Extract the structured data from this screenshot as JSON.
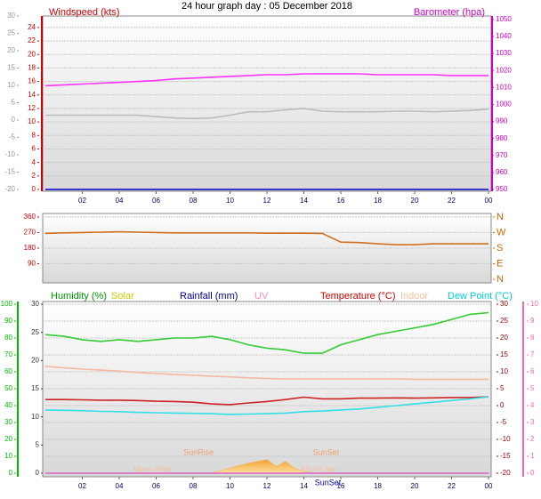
{
  "chart_data": [
    {
      "type": "line",
      "title": "24 hour graph day : 05 December 2018",
      "xlim": [
        0,
        24
      ],
      "xticks": [
        {
          "value": 2,
          "label": "02"
        },
        {
          "value": 4,
          "label": "04"
        },
        {
          "value": 6,
          "label": "06"
        },
        {
          "value": 8,
          "label": "08"
        },
        10,
        12,
        14,
        16,
        18,
        20,
        22,
        {
          "value": 24,
          "label": "00"
        }
      ],
      "ylim": [
        0,
        25.7
      ],
      "yticks": [
        0,
        2,
        4,
        6,
        8,
        10,
        12,
        14,
        16,
        18,
        20,
        22,
        24
      ],
      "ycolor": "#cc0000",
      "y3lim": [
        -20,
        30
      ],
      "y3ticks": [
        -20,
        -15,
        -10,
        -5,
        0,
        5,
        10,
        15,
        20,
        25,
        30
      ],
      "y3color": "#999999",
      "y2lim": [
        950,
        1052
      ],
      "y2ticks": [
        950,
        960,
        970,
        980,
        990,
        1000,
        1010,
        1020,
        1030,
        1040,
        1050
      ],
      "y2color": "#cc00cc",
      "grid": true,
      "x": [
        0,
        1,
        2,
        3,
        4,
        5,
        6,
        7,
        8,
        9,
        10,
        11,
        12,
        13,
        14,
        15,
        16,
        17,
        18,
        19,
        20,
        21,
        22,
        23,
        24
      ],
      "series": [
        {
          "color": "#bbbbbb",
          "values": [
            11,
            11,
            11,
            11,
            11,
            11,
            10.8,
            10.6,
            10.5,
            10.6,
            11,
            11.5,
            11.5,
            11.8,
            12,
            11.6,
            11.5,
            11.5,
            11.5,
            11.6,
            11.6,
            11.5,
            11.6,
            11.7,
            11.9
          ]
        },
        {
          "name": "Windspeed (kts)",
          "color": "#0000cc",
          "legend_color": "#cc0000",
          "values": [
            0,
            0,
            0,
            0,
            0,
            0,
            0,
            0,
            0,
            0,
            0,
            0,
            0,
            0,
            0,
            0,
            0,
            0,
            0,
            0,
            0,
            0,
            0,
            0,
            0
          ]
        },
        {
          "name": "Barometer (hpa)",
          "color": "#ff33ff",
          "legend_color": "#cc00cc",
          "axis": "y2",
          "values": [
            1011,
            1011.5,
            1012,
            1012.5,
            1013,
            1013.5,
            1014,
            1015,
            1015.5,
            1016,
            1016.5,
            1017,
            1017.5,
            1017.5,
            1018,
            1018,
            1018,
            1018,
            1017.5,
            1017.5,
            1017.5,
            1017.5,
            1017,
            1017,
            1017
          ]
        }
      ]
    },
    {
      "type": "line",
      "xlim": [
        0,
        24
      ],
      "ylim": [
        -10,
        380
      ],
      "yticks": [
        90,
        180,
        270,
        360
      ],
      "ycolor": "#cc0000",
      "y2lim": [
        -10,
        380
      ],
      "y2ticks": [
        {
          "value": 360,
          "label": "N"
        },
        {
          "value": 270,
          "label": "W"
        },
        {
          "value": 180,
          "label": "S"
        },
        {
          "value": 90,
          "label": "E"
        },
        {
          "value": 0,
          "label": "N"
        }
      ],
      "y2color": "#cc6600",
      "grid": true,
      "x": [
        0,
        1,
        2,
        3,
        4,
        5,
        6,
        7,
        8,
        9,
        10,
        11,
        12,
        13,
        14,
        15,
        16,
        17,
        18,
        19,
        20,
        21,
        22,
        23,
        24
      ],
      "series": [
        {
          "color": "#d07020",
          "values": [
            265,
            268,
            270,
            272,
            275,
            272,
            270,
            268,
            268,
            268,
            268,
            268,
            266,
            266,
            266,
            265,
            215,
            212,
            205,
            200,
            200,
            205,
            205,
            205,
            205
          ]
        }
      ]
    },
    {
      "type": "line",
      "xlim": [
        0,
        24
      ],
      "xticks": [
        {
          "value": 2,
          "label": "02"
        },
        {
          "value": 4,
          "label": "04"
        },
        {
          "value": 6,
          "label": "06"
        },
        {
          "value": 8,
          "label": "08"
        },
        10,
        12,
        14,
        16,
        18,
        20,
        22,
        {
          "value": 24,
          "label": "00"
        }
      ],
      "ylim": [
        0,
        100
      ],
      "yticks": [
        0,
        10,
        20,
        30,
        40,
        50,
        60,
        70,
        80,
        90,
        100
      ],
      "ycolor": "#00bb00",
      "y3lim": [
        0,
        30
      ],
      "y3ticks": [
        0,
        5,
        10,
        15,
        20,
        25,
        30
      ],
      "y3color": "#333333",
      "y2lim": [
        -20,
        30
      ],
      "y2ticks": [
        -20,
        -15,
        -10,
        -5,
        0,
        5,
        10,
        15,
        20,
        25,
        30
      ],
      "y2color": "#990000",
      "y4lim": [
        0,
        10
      ],
      "y4ticks": [
        0,
        1,
        2,
        3,
        4,
        5,
        6,
        7,
        8,
        9,
        10
      ],
      "y4color": "#ff66aa",
      "grid": true,
      "x": [
        0,
        1,
        2,
        3,
        4,
        5,
        6,
        7,
        8,
        9,
        10,
        11,
        12,
        13,
        14,
        15,
        16,
        17,
        18,
        19,
        20,
        21,
        22,
        23,
        24
      ],
      "series": [
        {
          "name": "Humidity (%)",
          "color": "#33cc33",
          "legend_color": "#009900",
          "values": [
            82,
            81,
            79,
            78,
            79,
            78,
            79,
            80,
            80,
            81,
            79,
            76,
            74,
            73,
            71,
            71,
            76,
            79,
            82,
            84,
            86,
            88,
            91,
            94,
            95
          ]
        },
        {
          "name": "Solar",
          "type": "area",
          "color": "#f5b040",
          "legend_color": "#cccc00",
          "x": [
            9,
            10,
            11,
            12,
            12.5,
            13,
            13.5,
            14,
            14.5
          ],
          "values": [
            0,
            3,
            6,
            8,
            4,
            7,
            3,
            1,
            0
          ]
        },
        {
          "name": "Rainfall (mm)",
          "color": "#000099",
          "legend_color": "#000099",
          "axis": "y3",
          "values": [
            0,
            0,
            0,
            0,
            0,
            0,
            0,
            0,
            0,
            0,
            0,
            0,
            0,
            0,
            0,
            0,
            0,
            0,
            0,
            0,
            0,
            0,
            0,
            0,
            0
          ]
        },
        {
          "name": "UV",
          "color": "#ff88cc",
          "legend_color": "#ff88cc",
          "axis": "y4",
          "values": [
            0,
            0,
            0,
            0,
            0,
            0,
            0,
            0,
            0,
            0,
            0,
            0,
            0,
            0,
            0,
            0,
            0,
            0,
            0,
            0,
            0,
            0,
            0,
            0,
            0
          ]
        },
        {
          "name": "Temperature (°C)",
          "color": "#cc2222",
          "legend_color": "#cc0000",
          "axis": "y2",
          "values": [
            1.8,
            1.8,
            1.7,
            1.6,
            1.6,
            1.5,
            1.3,
            1.2,
            1.0,
            0.5,
            0.3,
            0.8,
            1.2,
            1.8,
            2.5,
            2.0,
            2.0,
            2.2,
            2.2,
            2.3,
            2.2,
            2.3,
            2.4,
            2.4,
            2.6
          ]
        },
        {
          "name": "Indoor",
          "color": "#f5b8a0",
          "legend_color": "#f5c0a0",
          "axis": "y2",
          "values": [
            11.6,
            11.2,
            10.8,
            10.5,
            10.2,
            9.8,
            9.5,
            9.2,
            9.0,
            8.7,
            8.5,
            8.2,
            8.0,
            7.9,
            7.9,
            7.9,
            7.9,
            7.9,
            7.9,
            7.9,
            7.8,
            7.8,
            7.8,
            7.8,
            7.8
          ]
        },
        {
          "name": "Dew Point (°C)",
          "color": "#33e0e8",
          "legend_color": "#00cccc",
          "axis": "y2",
          "values": [
            -1.3,
            -1.4,
            -1.5,
            -1.7,
            -1.8,
            -2.0,
            -2.1,
            -2.2,
            -2.3,
            -2.4,
            -2.6,
            -2.5,
            -2.4,
            -2.2,
            -1.8,
            -1.6,
            -1.3,
            -1.0,
            -0.5,
            0,
            0.5,
            1.0,
            1.5,
            2.0,
            2.6
          ]
        }
      ],
      "annotations": [
        {
          "text": "SunRise",
          "x": 8.3,
          "y": 10,
          "color": "#f0a070"
        },
        {
          "text": "SunSet",
          "x": 15.2,
          "y": 10,
          "color": "#f0a070"
        },
        {
          "text": "Moon Rise",
          "x": 5.8,
          "y": 0,
          "color": "#f5c0a0"
        },
        {
          "text": "Moon Set",
          "x": 14.8,
          "y": 0,
          "color": "#f5c0a0"
        },
        {
          "text": "SunSet",
          "x": 15.3,
          "y": -8,
          "color": "#000099"
        }
      ]
    }
  ]
}
